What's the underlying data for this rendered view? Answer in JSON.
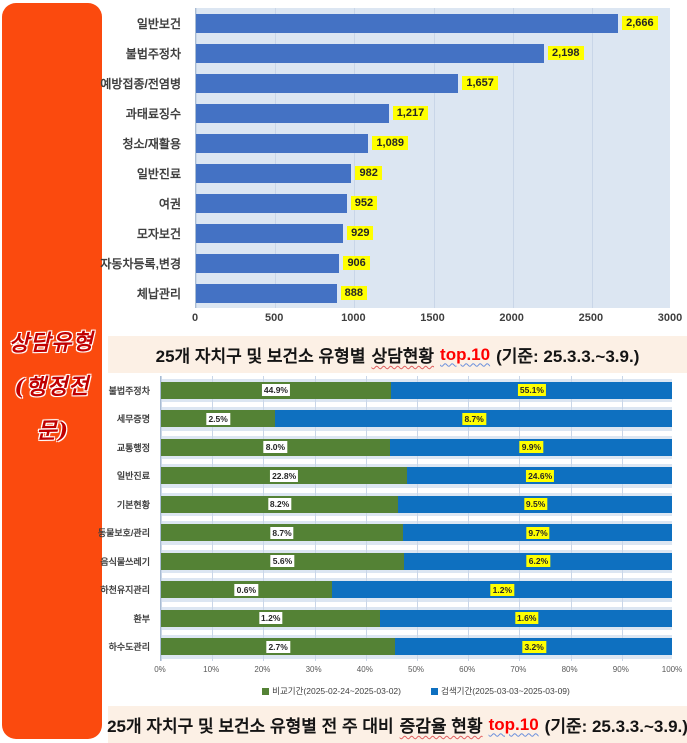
{
  "sidebar": {
    "line1": "상담유형",
    "line2": "(행정전문)",
    "bg_color": "#fb4a0e",
    "text_color": "#c00000"
  },
  "titles": {
    "top": {
      "prefix": "25개 자치구 및 보건소 유형별",
      "wavy": "상담현황",
      "top10": "top.10",
      "tail": "(기준: 25.3.3.~3.9.)"
    },
    "bottom": {
      "prefix": "25개 자치구 및 보건소 유형별 전 주 대비",
      "wavy": "증감율 현황",
      "top10": "top.10",
      "tail": "(기준: 25.3.3.~3.9.)"
    }
  },
  "colors": {
    "top_bar": "#4472c4",
    "plot_bg": "#dce6f2",
    "gridline": "#c9d6e8",
    "green_series": "#548235",
    "blue_series": "#0e70c0",
    "label_yellow": "#ffff00"
  },
  "chart_data": [
    {
      "type": "bar",
      "orientation": "horizontal",
      "title": "25개 자치구 및 보건소 유형별 상담현황 top.10 (기준: 25.3.3.~3.9.)",
      "categories": [
        "일반보건",
        "불법주정차",
        "예방접종/전염병",
        "과태료징수",
        "청소/재활용",
        "일반진료",
        "여권",
        "모자보건",
        "자동차등록,변경",
        "체납관리"
      ],
      "values": [
        2666,
        2198,
        1657,
        1217,
        1089,
        982,
        952,
        929,
        906,
        888
      ],
      "value_labels": [
        "2,666",
        "2,198",
        "1,657",
        "1,217",
        "1,089",
        "982",
        "952",
        "929",
        "906",
        "888"
      ],
      "xlim": [
        0,
        3000
      ],
      "xticks": [
        0,
        500,
        1000,
        1500,
        2000,
        2500,
        3000
      ],
      "bar_color": "#4472c4",
      "grid": true,
      "legend_position": "none"
    },
    {
      "type": "bar",
      "orientation": "horizontal",
      "subtype": "stacked-100-percent",
      "title": "25개 자치구 및 보건소 유형별 전 주 대비 증감율 현황 top.10 (기준: 25.3.3.~3.9.)",
      "categories": [
        "불법주정차",
        "세무증명",
        "교통행정",
        "일반진료",
        "기본현황",
        "동물보호/관리",
        "음식물쓰레기",
        "하천유지관리",
        "환부",
        "하수도관리"
      ],
      "series": [
        {
          "name": "비교기간(2025-02-24~2025-03-02)",
          "color": "#548235",
          "values": [
            44.9,
            2.5,
            8.0,
            22.8,
            8.2,
            8.7,
            5.6,
            0.6,
            1.2,
            2.7
          ]
        },
        {
          "name": "검색기간(2025-03-03~2025-03-09)",
          "color": "#0e70c0",
          "values": [
            55.1,
            8.7,
            9.9,
            24.6,
            9.5,
            9.7,
            6.2,
            1.2,
            1.6,
            3.2
          ]
        }
      ],
      "xtick_labels": [
        "0%",
        "10%",
        "20%",
        "30%",
        "40%",
        "50%",
        "60%",
        "70%",
        "80%",
        "90%",
        "100%"
      ],
      "grid": true,
      "legend_position": "bottom"
    }
  ]
}
